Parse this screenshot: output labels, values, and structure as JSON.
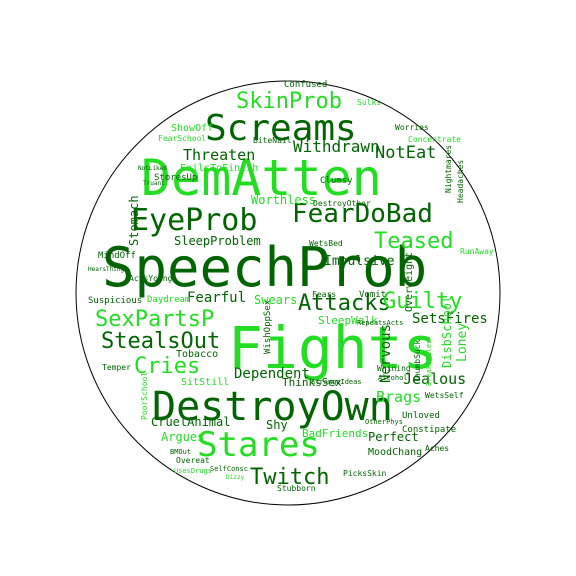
{
  "colors": {
    "dark": "#006400",
    "mid": "#1a8c1a",
    "light": "#22dd22",
    "pale": "#66ee66",
    "outline": "#000000"
  },
  "words": [
    {
      "text": "SpeechProb",
      "tone": "dark"
    },
    {
      "text": "DemAtten",
      "tone": "light"
    },
    {
      "text": "Fights",
      "tone": "light"
    },
    {
      "text": "DestroyOwn",
      "tone": "dark"
    },
    {
      "text": "Screams",
      "tone": "dark"
    },
    {
      "text": "EyeProb",
      "tone": "dark"
    },
    {
      "text": "FearDoBad",
      "tone": "dark"
    },
    {
      "text": "Stares",
      "tone": "light"
    },
    {
      "text": "SkinProb",
      "tone": "light"
    },
    {
      "text": "Twitch",
      "tone": "dark"
    },
    {
      "text": "Attacks",
      "tone": "dark"
    },
    {
      "text": "StealsOut",
      "tone": "dark"
    },
    {
      "text": "SexPartsP",
      "tone": "light"
    },
    {
      "text": "Guilty",
      "tone": "light"
    },
    {
      "text": "Teased",
      "tone": "light"
    },
    {
      "text": "Cries",
      "tone": "light"
    },
    {
      "text": "Threaten",
      "tone": "dark"
    },
    {
      "text": "Withdrawn",
      "tone": "dark"
    },
    {
      "text": "NotEat",
      "tone": "dark"
    },
    {
      "text": "Stomach",
      "tone": "dark"
    },
    {
      "text": "SleepProblem",
      "tone": "dark"
    },
    {
      "text": "Impulsive",
      "tone": "dark"
    },
    {
      "text": "Worthless",
      "tone": "light"
    },
    {
      "text": "Fearful",
      "tone": "dark"
    },
    {
      "text": "Swears",
      "tone": "light"
    },
    {
      "text": "Dependent",
      "tone": "dark"
    },
    {
      "text": "Jealous",
      "tone": "dark"
    },
    {
      "text": "Nervous",
      "tone": "dark"
    },
    {
      "text": "Brags",
      "tone": "light"
    },
    {
      "text": "SetsFires",
      "tone": "dark"
    },
    {
      "text": "Loney",
      "tone": "light"
    },
    {
      "text": "DisbSchool",
      "tone": "light"
    },
    {
      "text": "Overweight",
      "tone": "dark"
    },
    {
      "text": "SleepWalk",
      "tone": "light"
    },
    {
      "text": "WishOppSex",
      "tone": "dark"
    },
    {
      "text": "CruelAnimal",
      "tone": "dark"
    },
    {
      "text": "Argues",
      "tone": "light"
    },
    {
      "text": "Shy",
      "tone": "dark"
    },
    {
      "text": "BadFriends",
      "tone": "light"
    },
    {
      "text": "Perfect",
      "tone": "dark"
    },
    {
      "text": "MoodChang",
      "tone": "dark"
    },
    {
      "text": "ThinksSex",
      "tone": "dark"
    },
    {
      "text": "SitStill",
      "tone": "light"
    },
    {
      "text": "Tobacco",
      "tone": "dark"
    },
    {
      "text": "Daydream",
      "tone": "light"
    },
    {
      "text": "Suspicious",
      "tone": "dark"
    },
    {
      "text": "ActsYoung",
      "tone": "dark"
    },
    {
      "text": "MindOff",
      "tone": "dark"
    },
    {
      "text": "StoresUp",
      "tone": "dark"
    },
    {
      "text": "Clumsy",
      "tone": "dark"
    },
    {
      "text": "DestroyOther",
      "tone": "dark"
    },
    {
      "text": "Concentrate",
      "tone": "light"
    },
    {
      "text": "Worries",
      "tone": "dark"
    },
    {
      "text": "Sulks",
      "tone": "light"
    },
    {
      "text": "Confused",
      "tone": "dark"
    },
    {
      "text": "ShowOff",
      "tone": "light"
    },
    {
      "text": "FearSchool",
      "tone": "light"
    },
    {
      "text": "BiteNail",
      "tone": "dark"
    },
    {
      "text": "FailsToFinish",
      "tone": "light"
    },
    {
      "text": "NotLiked",
      "tone": "dark"
    },
    {
      "text": "Truant",
      "tone": "dark"
    },
    {
      "text": "Nightmares",
      "tone": "dark"
    },
    {
      "text": "Headaches",
      "tone": "dark"
    },
    {
      "text": "RunAway",
      "tone": "light"
    },
    {
      "text": "WetsBed",
      "tone": "dark"
    },
    {
      "text": "Fears",
      "tone": "dark"
    },
    {
      "text": "Vomit",
      "tone": "dark"
    },
    {
      "text": "RepeatsActs",
      "tone": "dark"
    },
    {
      "text": "Whining",
      "tone": "dark"
    },
    {
      "text": "Alcohol",
      "tone": "dark"
    },
    {
      "text": "Unloved",
      "tone": "dark"
    },
    {
      "text": "ThumbSuck",
      "tone": "dark"
    },
    {
      "text": "BreaksRules",
      "tone": "light"
    },
    {
      "text": "Constipate",
      "tone": "dark"
    },
    {
      "text": "StrangeIdeas",
      "tone": "dark"
    },
    {
      "text": "OtherPhys",
      "tone": "dark"
    },
    {
      "text": "WetsSelf",
      "tone": "dark"
    },
    {
      "text": "Aches",
      "tone": "dark"
    },
    {
      "text": "Temper",
      "tone": "dark"
    },
    {
      "text": "PoorSchool",
      "tone": "light"
    },
    {
      "text": "HearsThings",
      "tone": "dark"
    },
    {
      "text": "BMOut",
      "tone": "dark"
    },
    {
      "text": "Overeat",
      "tone": "dark"
    },
    {
      "text": "UsesDrugs",
      "tone": "light"
    },
    {
      "text": "SelfConsc",
      "tone": "dark"
    },
    {
      "text": "Dizzy",
      "tone": "light"
    },
    {
      "text": "PicksSkin",
      "tone": "dark"
    },
    {
      "text": "Stubborn",
      "tone": "dark"
    }
  ]
}
